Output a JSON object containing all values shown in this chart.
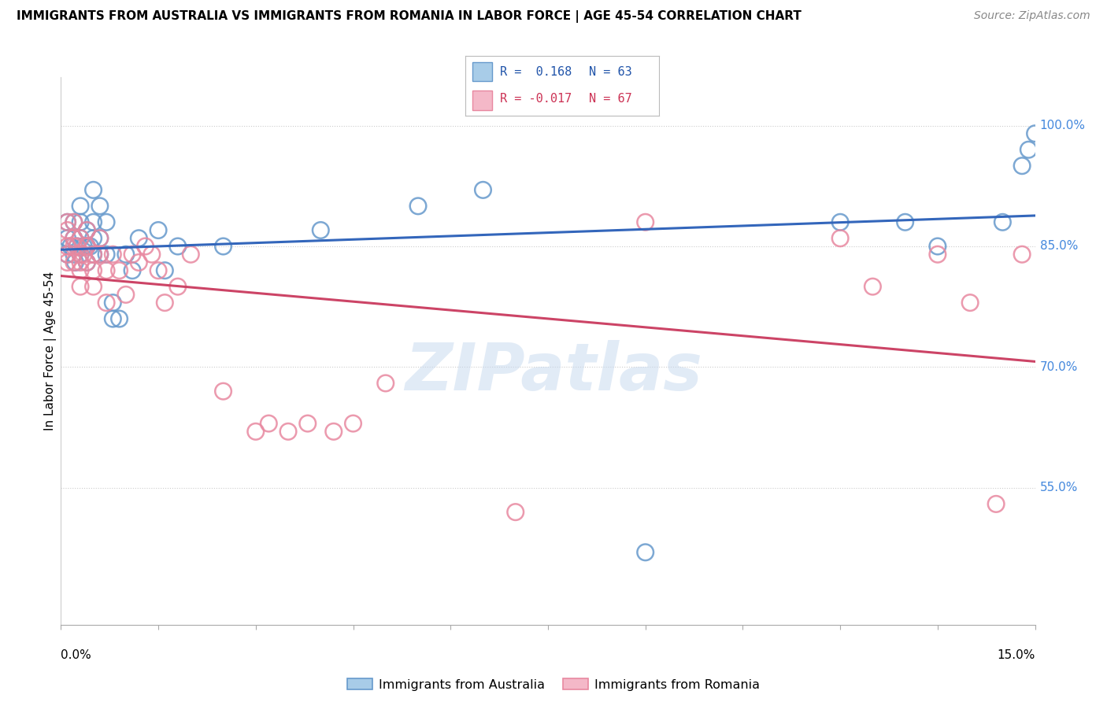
{
  "title": "IMMIGRANTS FROM AUSTRALIA VS IMMIGRANTS FROM ROMANIA IN LABOR FORCE | AGE 45-54 CORRELATION CHART",
  "source": "Source: ZipAtlas.com",
  "ylabel": "In Labor Force | Age 45-54",
  "xlim": [
    0.0,
    0.15
  ],
  "ylim": [
    0.38,
    1.06
  ],
  "australia_color": "#a8cce8",
  "australia_edge": "#6699cc",
  "romania_color": "#f4b8c8",
  "romania_edge": "#e888a0",
  "australia_line_color": "#3366bb",
  "romania_line_color": "#cc4466",
  "legend_r_australia": "R =  0.168",
  "legend_n_australia": "N = 63",
  "legend_r_romania": "R = -0.017",
  "legend_n_romania": "N = 67",
  "ytick_vals": [
    0.55,
    0.7,
    0.85,
    1.0
  ],
  "ytick_labels": [
    "55.0%",
    "70.0%",
    "85.0%",
    "100.0%"
  ],
  "australia_x": [
    0.001,
    0.001,
    0.001,
    0.0015,
    0.002,
    0.002,
    0.002,
    0.0022,
    0.0025,
    0.003,
    0.003,
    0.003,
    0.003,
    0.0035,
    0.004,
    0.004,
    0.004,
    0.0045,
    0.005,
    0.005,
    0.005,
    0.005,
    0.006,
    0.006,
    0.006,
    0.007,
    0.007,
    0.008,
    0.008,
    0.009,
    0.01,
    0.011,
    0.012,
    0.015,
    0.016,
    0.018,
    0.025,
    0.04,
    0.055,
    0.065,
    0.09,
    0.12,
    0.13,
    0.135,
    0.145,
    0.148,
    0.149,
    0.15
  ],
  "australia_y": [
    0.84,
    0.86,
    0.88,
    0.85,
    0.84,
    0.86,
    0.88,
    0.83,
    0.85,
    0.84,
    0.86,
    0.88,
    0.9,
    0.85,
    0.83,
    0.85,
    0.87,
    0.85,
    0.84,
    0.86,
    0.88,
    0.92,
    0.86,
    0.84,
    0.9,
    0.84,
    0.88,
    0.76,
    0.78,
    0.76,
    0.84,
    0.82,
    0.86,
    0.87,
    0.82,
    0.85,
    0.85,
    0.87,
    0.9,
    0.92,
    0.47,
    0.88,
    0.88,
    0.85,
    0.88,
    0.95,
    0.97,
    0.99
  ],
  "romania_x": [
    0.001,
    0.001,
    0.001,
    0.001,
    0.001,
    0.002,
    0.002,
    0.002,
    0.002,
    0.0025,
    0.003,
    0.003,
    0.003,
    0.003,
    0.003,
    0.0035,
    0.004,
    0.004,
    0.004,
    0.005,
    0.005,
    0.005,
    0.006,
    0.006,
    0.007,
    0.007,
    0.008,
    0.009,
    0.01,
    0.011,
    0.012,
    0.013,
    0.014,
    0.015,
    0.016,
    0.018,
    0.02,
    0.025,
    0.03,
    0.032,
    0.035,
    0.038,
    0.042,
    0.045,
    0.05,
    0.07,
    0.09,
    0.12,
    0.125,
    0.135,
    0.14,
    0.144,
    0.148
  ],
  "romania_y": [
    0.84,
    0.85,
    0.87,
    0.83,
    0.88,
    0.85,
    0.83,
    0.86,
    0.88,
    0.85,
    0.84,
    0.83,
    0.8,
    0.82,
    0.86,
    0.84,
    0.83,
    0.85,
    0.87,
    0.84,
    0.82,
    0.8,
    0.86,
    0.84,
    0.82,
    0.78,
    0.84,
    0.82,
    0.79,
    0.84,
    0.83,
    0.85,
    0.84,
    0.82,
    0.78,
    0.8,
    0.84,
    0.67,
    0.62,
    0.63,
    0.62,
    0.63,
    0.62,
    0.63,
    0.68,
    0.52,
    0.88,
    0.86,
    0.8,
    0.84,
    0.78,
    0.53,
    0.84
  ]
}
